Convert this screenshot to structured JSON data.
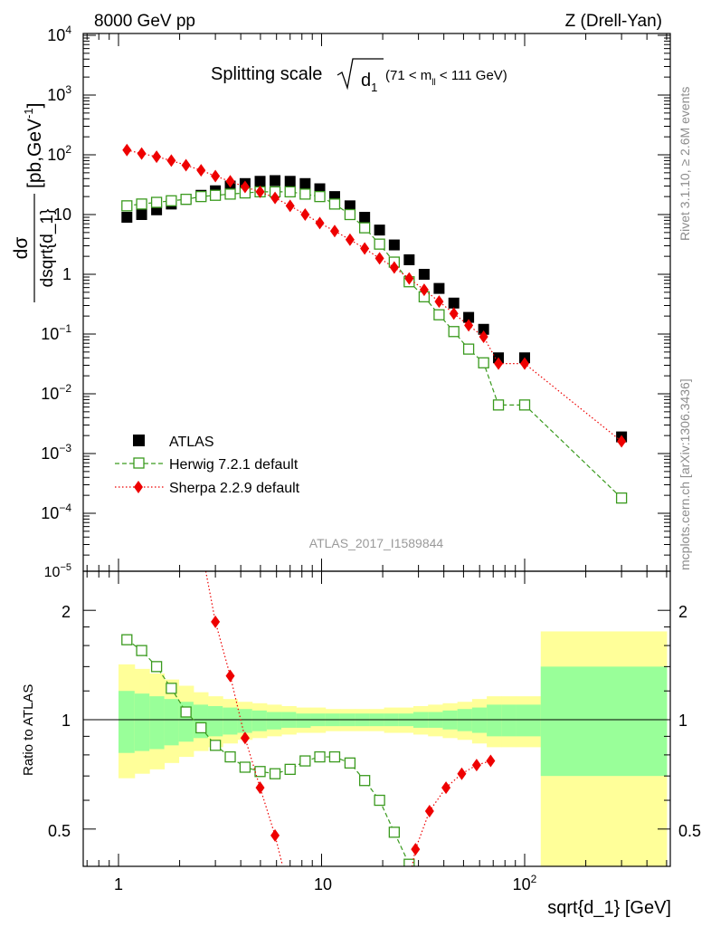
{
  "header": {
    "left": "8000 GeV pp",
    "right": "Z (Drell-Yan)"
  },
  "plot_title": {
    "main": "Splitting scale",
    "sqrt_arg": "d",
    "sqrt_sub": "1",
    "range_left": "(71 < m",
    "range_sub": "ll",
    "range_right": " < 111 GeV)"
  },
  "side_labels": {
    "rivet": "Rivet 3.1.10, ≥ 2.6M events",
    "mcplots": "mcplots.cern.ch [arXiv:1306.3436]"
  },
  "watermark": "ATLAS_2017_I1589844",
  "top_ylabel": {
    "num": "dσ",
    "den": "dsqrt{d_1}",
    "unit": "[pb,GeV",
    "unit_sup": "-1",
    "unit_close": "]"
  },
  "ratio_ylabel": "Ratio to ATLAS",
  "xlabel": "sqrt{d_1} [GeV]",
  "x_tick_labels": [
    "1",
    "10",
    "10"
  ],
  "x_tick_sup": "2",
  "top_tick_labels": [
    "10",
    "10",
    "10",
    "10",
    "1",
    "10",
    "10",
    "10",
    "10",
    "10"
  ],
  "top_tick_sups": [
    "4",
    "3",
    "2",
    "",
    "",
    "−1",
    "−2",
    "−3",
    "−4",
    "−5"
  ],
  "ratio_tick_labels": [
    "2",
    "1",
    "0.5"
  ],
  "legend": {
    "atlas": "ATLAS",
    "herwig": "Herwig 7.2.1 default",
    "sherpa": "Sherpa 2.2.9 default"
  },
  "colors": {
    "atlas": "#000000",
    "herwig": "#3a9a1e",
    "sherpa": "#ee0000",
    "band_inner": "#99ff99",
    "band_outer": "#ffff99"
  },
  "chart_data": [
    {
      "type": "scatter",
      "title": "Splitting scale sqrt(d_1) (71 < m_ll < 111 GeV)",
      "xlabel": "sqrt{d_1} [GeV]",
      "ylabel": "dσ/dsqrt{d_1} [pb,GeV^-1]",
      "x_scale": "log",
      "y_scale": "log",
      "xlim": [
        0.65,
        500
      ],
      "ylim": [
        1e-05,
        10000
      ],
      "legend_position": "bottom-left",
      "series": [
        {
          "name": "ATLAS",
          "marker": "square-filled",
          "x": [
            1.1,
            1.3,
            1.54,
            1.82,
            2.15,
            2.55,
            3.0,
            3.55,
            4.2,
            4.98,
            5.9,
            7.0,
            8.3,
            9.8,
            11.6,
            13.8,
            16.3,
            19.3,
            22.8,
            27.0,
            32.0,
            37.9,
            44.8,
            53.0,
            62.8,
            74.3,
            100,
            300
          ],
          "y": [
            9,
            10,
            12,
            15,
            18,
            21,
            25,
            30,
            33,
            36,
            37,
            36,
            33,
            27,
            20,
            14,
            9,
            5.5,
            3.1,
            1.75,
            1.0,
            0.58,
            0.33,
            0.19,
            0.12,
            0.04,
            0.04,
            0.0019
          ]
        },
        {
          "name": "Herwig 7.2.1 default",
          "marker": "square-open",
          "line": "dashed",
          "x": [
            1.1,
            1.3,
            1.54,
            1.82,
            2.15,
            2.55,
            3.0,
            3.55,
            4.2,
            4.98,
            5.9,
            7.0,
            8.3,
            9.8,
            11.6,
            13.8,
            16.3,
            19.3,
            22.8,
            27.0,
            32.0,
            37.9,
            44.8,
            53.0,
            62.8,
            74.3,
            100,
            300
          ],
          "y": [
            14,
            15,
            16,
            17,
            18,
            20,
            21,
            22,
            23,
            24,
            24,
            24,
            22,
            20,
            15,
            10,
            6,
            3.2,
            1.6,
            0.75,
            0.42,
            0.21,
            0.11,
            0.056,
            0.033,
            0.0065,
            0.0065,
            0.00018
          ]
        },
        {
          "name": "Sherpa 2.2.9 default",
          "marker": "diamond-filled",
          "line": "dotted",
          "x": [
            1.1,
            1.3,
            1.54,
            1.82,
            2.15,
            2.55,
            3.0,
            3.55,
            4.2,
            4.98,
            5.9,
            7.0,
            8.3,
            9.8,
            11.6,
            13.8,
            16.3,
            19.3,
            22.8,
            27.0,
            32.0,
            37.9,
            44.8,
            53.0,
            62.8,
            74.3,
            100,
            300
          ],
          "y": [
            120,
            105,
            93,
            80,
            67,
            55,
            44,
            36,
            29,
            24,
            19,
            14,
            10,
            7.2,
            5.3,
            3.8,
            2.7,
            1.85,
            1.3,
            0.85,
            0.55,
            0.35,
            0.22,
            0.14,
            0.09,
            0.032,
            0.032,
            0.0016
          ]
        }
      ]
    },
    {
      "type": "line",
      "title": "Ratio to ATLAS",
      "xlabel": "sqrt{d_1} [GeV]",
      "ylabel": "Ratio to ATLAS",
      "x_scale": "log",
      "xlim": [
        0.65,
        500
      ],
      "ylim": [
        0.4,
        2.3
      ],
      "reference_line": 1,
      "uncertainty_bands": {
        "edges": [
          1.0,
          1.2,
          1.42,
          1.68,
          1.98,
          2.34,
          2.76,
          3.26,
          3.85,
          4.55,
          5.37,
          6.34,
          7.49,
          8.84,
          10.44,
          12.33,
          14.56,
          17.2,
          20.31,
          23.98,
          28.32,
          33.45,
          39.5,
          46.65,
          55.1,
          65.07,
          76.85,
          90.76,
          120,
          500
        ],
        "inner_low": [
          0.81,
          0.82,
          0.83,
          0.85,
          0.87,
          0.89,
          0.9,
          0.91,
          0.92,
          0.93,
          0.94,
          0.95,
          0.95,
          0.96,
          0.96,
          0.96,
          0.96,
          0.96,
          0.96,
          0.96,
          0.95,
          0.95,
          0.94,
          0.93,
          0.92,
          0.9,
          0.9,
          0.9,
          0.7
        ],
        "inner_high": [
          1.2,
          1.18,
          1.16,
          1.14,
          1.12,
          1.1,
          1.09,
          1.08,
          1.07,
          1.06,
          1.05,
          1.05,
          1.04,
          1.04,
          1.04,
          1.04,
          1.04,
          1.04,
          1.04,
          1.04,
          1.05,
          1.05,
          1.06,
          1.07,
          1.08,
          1.1,
          1.1,
          1.1,
          1.4
        ],
        "outer_low": [
          0.69,
          0.71,
          0.73,
          0.76,
          0.79,
          0.82,
          0.84,
          0.86,
          0.88,
          0.89,
          0.9,
          0.91,
          0.92,
          0.92,
          0.93,
          0.93,
          0.93,
          0.93,
          0.92,
          0.92,
          0.91,
          0.9,
          0.89,
          0.88,
          0.86,
          0.84,
          0.84,
          0.84,
          0.35
        ],
        "outer_high": [
          1.42,
          1.38,
          1.34,
          1.29,
          1.24,
          1.19,
          1.16,
          1.14,
          1.12,
          1.11,
          1.1,
          1.09,
          1.08,
          1.08,
          1.07,
          1.07,
          1.07,
          1.07,
          1.08,
          1.08,
          1.09,
          1.1,
          1.11,
          1.12,
          1.14,
          1.16,
          1.16,
          1.16,
          1.75
        ]
      },
      "series": [
        {
          "name": "Herwig 7.2.1 default",
          "x": [
            1.1,
            1.3,
            1.54,
            1.82,
            2.15,
            2.55,
            3.0,
            3.55,
            4.2,
            4.98,
            5.9,
            7.0,
            8.3,
            9.8,
            11.6,
            13.8,
            16.3,
            19.3,
            22.8,
            27.0
          ],
          "y": [
            1.66,
            1.55,
            1.4,
            1.22,
            1.05,
            0.95,
            0.85,
            0.79,
            0.74,
            0.72,
            0.71,
            0.73,
            0.77,
            0.79,
            0.79,
            0.76,
            0.68,
            0.6,
            0.49,
            0.4
          ]
        },
        {
          "name": "Sherpa 2.2.9 default",
          "x": [
            3.0,
            3.55,
            4.2,
            4.98,
            5.9,
            6.4,
            29.0,
            34.0,
            41.0,
            49.0,
            58.0,
            68.0
          ],
          "y": [
            1.86,
            1.32,
            0.89,
            0.65,
            0.48,
            0.4,
            0.44,
            0.56,
            0.65,
            0.71,
            0.75,
            0.77
          ]
        }
      ]
    }
  ]
}
